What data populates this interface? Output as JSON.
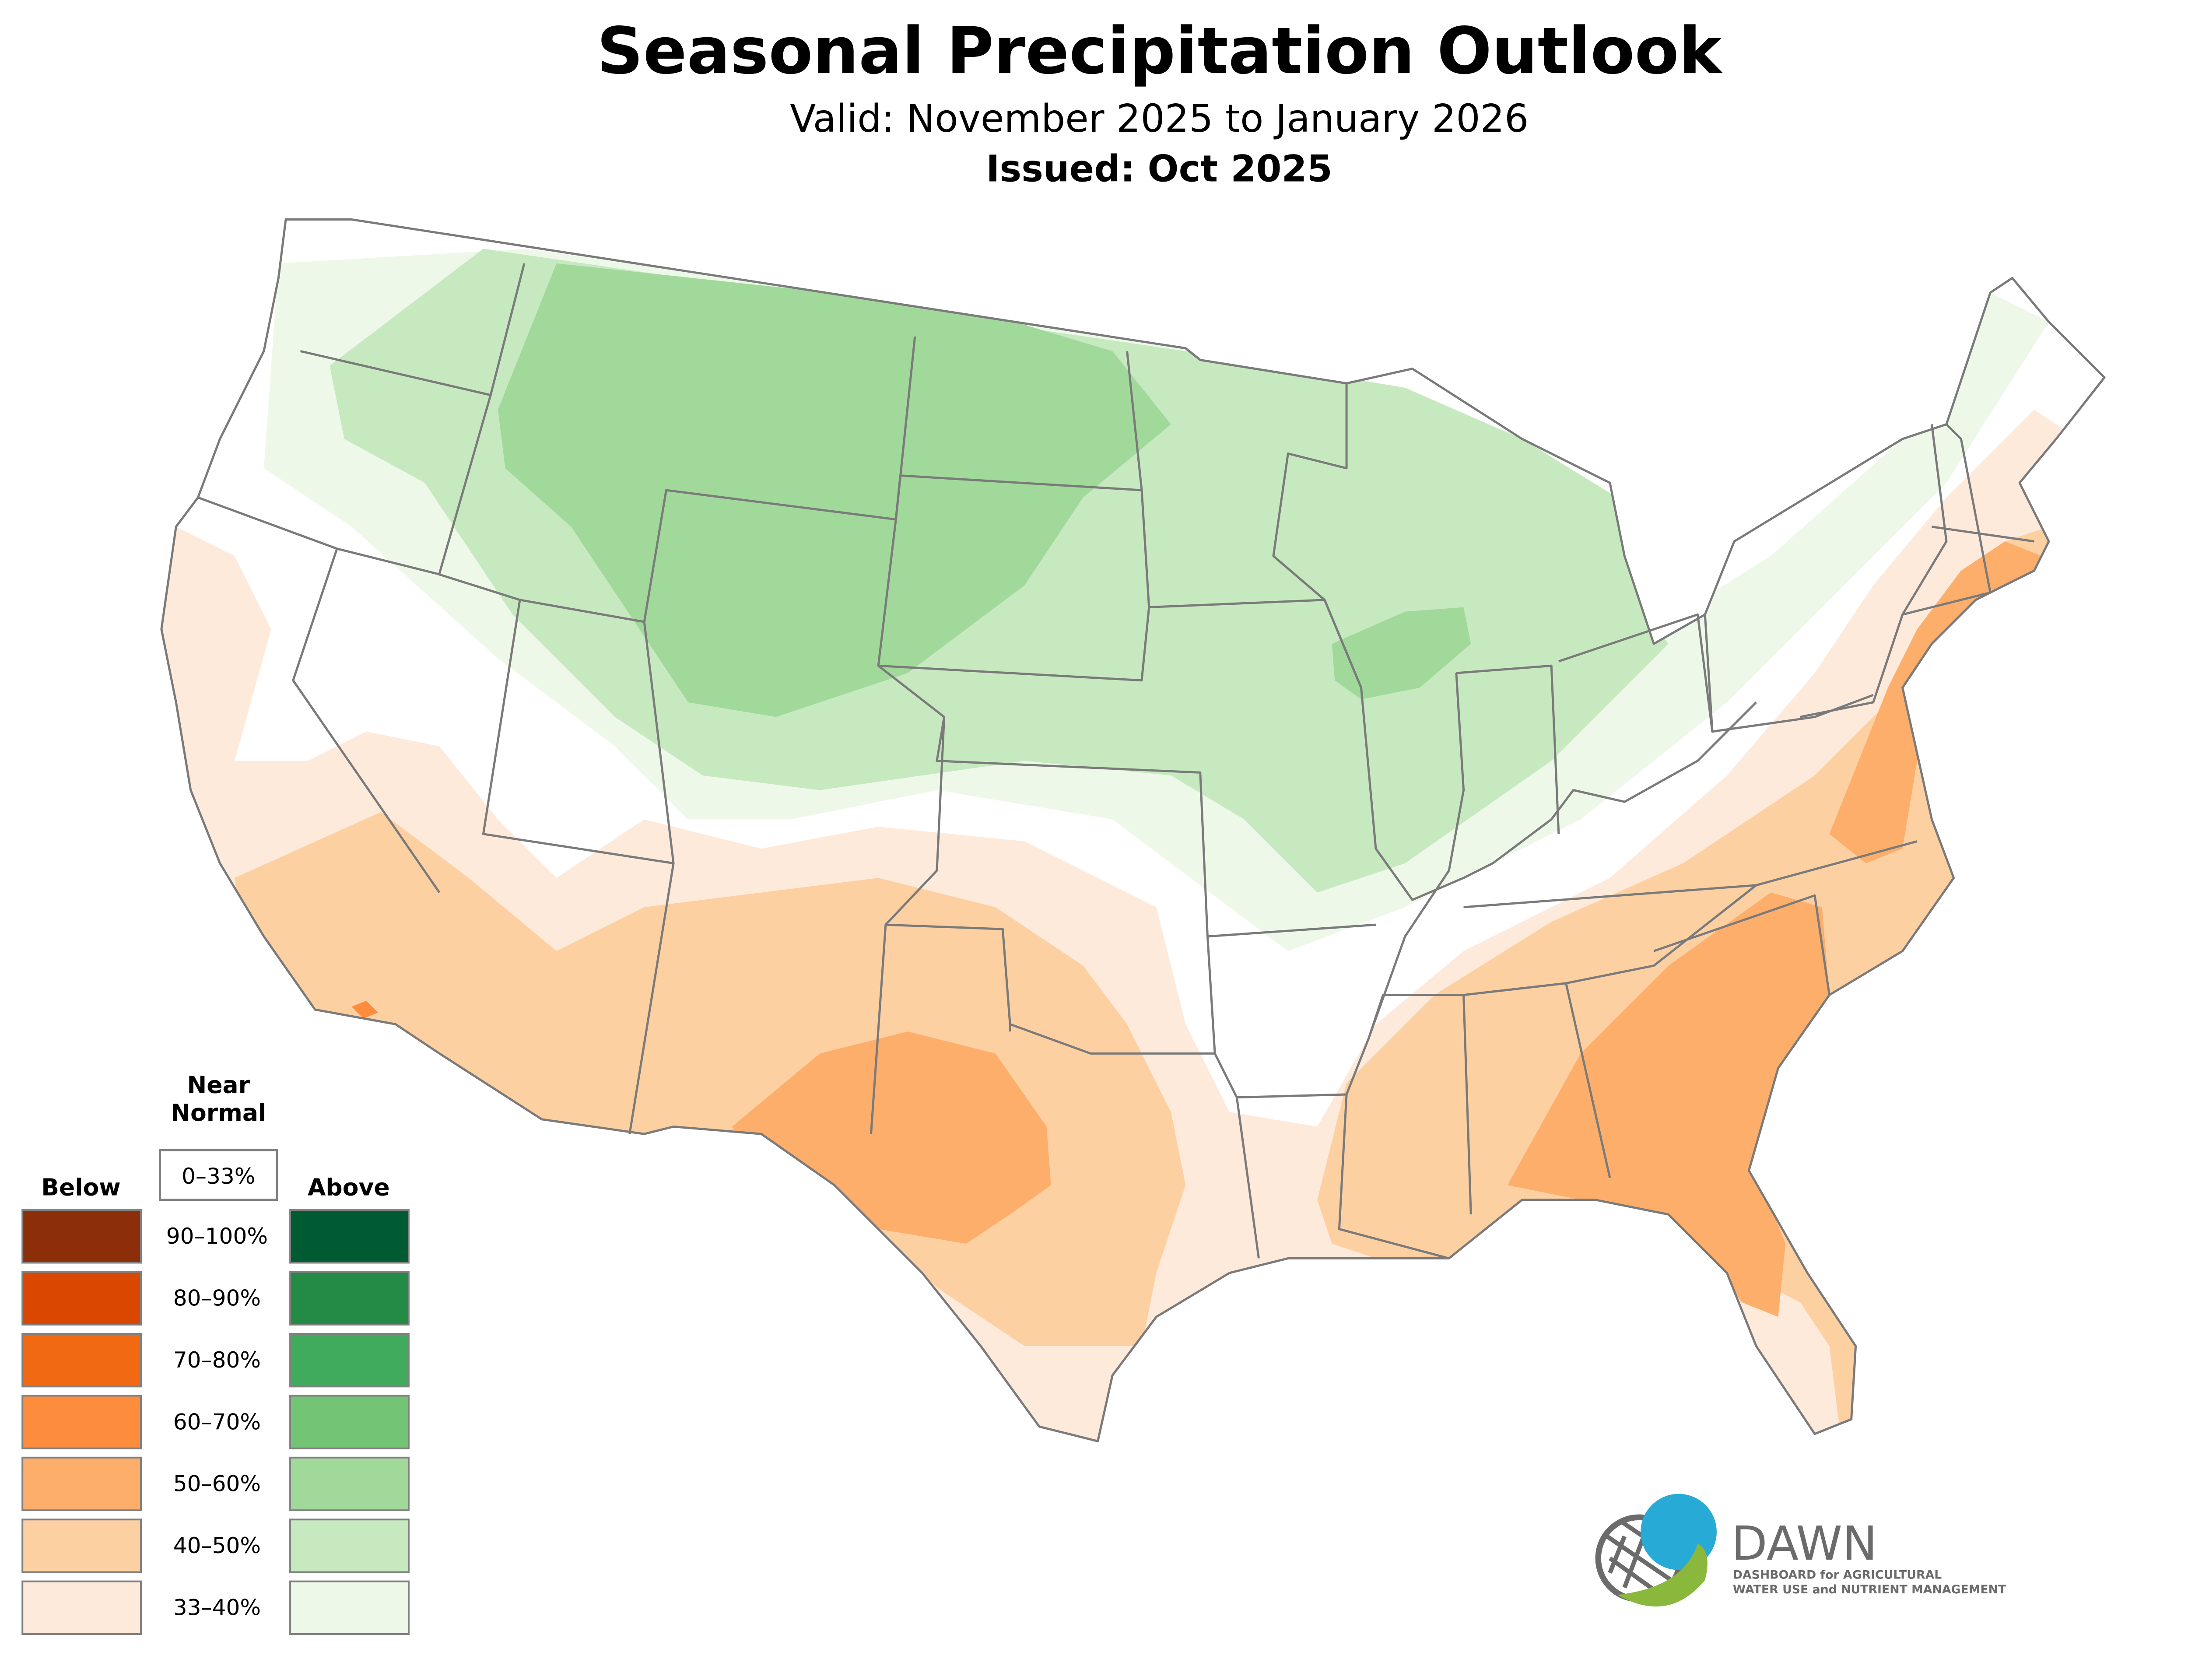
{
  "title": "Seasonal Precipitation Outlook",
  "valid": "Valid: November 2025 to January 2026",
  "issued": "Issued: Oct 2025",
  "legend": {
    "near_normal_heading_1": "Near",
    "near_normal_heading_2": "Normal",
    "near_normal_range": "0–33%",
    "below_heading": "Below",
    "above_heading": "Above",
    "rows": [
      {
        "range": "90–100%",
        "below_color": "#8b2e09",
        "above_color": "#005a32"
      },
      {
        "range": "80–90%",
        "below_color": "#d94701",
        "above_color": "#238b45"
      },
      {
        "range": "70–80%",
        "below_color": "#f16913",
        "above_color": "#41ab5d"
      },
      {
        "range": "60–70%",
        "below_color": "#fd8d3c",
        "above_color": "#74c476"
      },
      {
        "range": "50–60%",
        "below_color": "#fdae6b",
        "above_color": "#a1d99b"
      },
      {
        "range": "40–50%",
        "below_color": "#fdd0a2",
        "above_color": "#c7e9c0"
      },
      {
        "range": "33–40%",
        "below_color": "#feeadb",
        "above_color": "#edf8e9"
      }
    ]
  },
  "logo": {
    "name": "DAWN",
    "tagline_1": "DASHBOARD for AGRICULTURAL",
    "tagline_2": "WATER USE and NUTRIENT MANAGEMENT",
    "blue": "#27aad6",
    "green": "#8ab83d",
    "gray": "#6b6b6b"
  },
  "map_colors": {
    "border": "#7a7a7a",
    "above_33_40": "#edf8e9",
    "above_40_50": "#c7e9c0",
    "above_50_60": "#a1d99b",
    "below_33_40": "#feeadb",
    "below_40_50": "#fdd0a2",
    "below_50_60": "#fdae6b",
    "below_60_70": "#fd8d3c"
  }
}
